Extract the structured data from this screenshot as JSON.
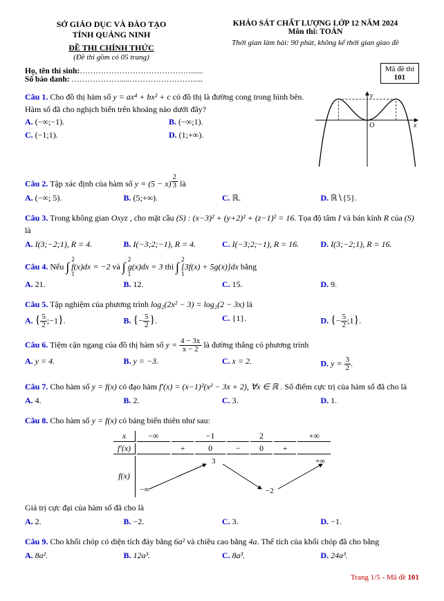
{
  "header": {
    "left_l1": "SỞ GIÁO DỤC VÀ ĐÀO TẠO",
    "left_l2": "TỈNH QUẢNG NINH",
    "left_l3": "ĐỀ THI CHÍNH THỨC",
    "left_l4": "(Đề thi gồm có 05 trang)",
    "right_r1": "KHẢO SÁT CHẤT LƯỢNG LỚP 12 NĂM 2024",
    "right_r2": "Môn thi: TOÁN",
    "right_r3": "Thời gian làm bài: 90 phút, không kể thời gian giao đề",
    "code_label": "Mã đề thi",
    "code_value": "101"
  },
  "info": {
    "name_label": "Họ, tên thí sinh:",
    "name_dots": "……………………………………......",
    "id_label": "Số báo danh:",
    "id_dots": "……………….....……………………....."
  },
  "q1": {
    "num": "Câu 1.",
    "stem_pre": " Cho đồ thị hàm số ",
    "stem_eq": "y = ax⁴ + bx² + c",
    "stem_post": " có đồ thị là đường cong trong hình bên. Hàm số đã cho nghịch biến trên khoảng nào dưới đây?",
    "A": "(−∞;−1).",
    "B": "(−∞;1).",
    "C": "(−1;1).",
    "D": "(1;+∞).",
    "graph": {
      "bg": "#ffffff",
      "axis_color": "#000000",
      "curve_color": "#000000",
      "dash_color": "#000000",
      "x_label": "x",
      "y_label": "y",
      "o_label": "O",
      "xmin": -1.8,
      "xmax": 1.8,
      "ymin": -2.2,
      "ymax": 1.4,
      "curve_a": -1,
      "curve_b": 2,
      "curve_c": 0,
      "guide_x": [
        -1,
        1
      ],
      "guide_y": 1
    }
  },
  "q2": {
    "num": "Câu 2.",
    "stem": " Tập xác định của hàm số ",
    "eq": "y = (5 − x)",
    "exp_num": "2",
    "exp_den": "3",
    "tail": " là",
    "A": "(−∞; 5).",
    "B": "(5;+∞).",
    "C": "ℝ.",
    "D": "ℝ∖{5}."
  },
  "q3": {
    "num": "Câu 3.",
    "stem": " Trong không gian ",
    "oxyz": "Oxyz",
    "mid": " , cho mặt cầu ",
    "eq": "(S) : (x−3)² + (y+2)² + (z−1)² = 16.",
    "mid2": " Tọa độ tâm ",
    "ivar": "I",
    "mid3": " và bán kính ",
    "rvar": "R",
    "mid4": " của ",
    "svar": "(S)",
    "tail": " là",
    "A": "I(3;−2;1), R = 4.",
    "B": "I(−3;2;−1), R = 4.",
    "C": "I(−3;2;−1), R = 16.",
    "D": "I(3;−2;1), R = 16."
  },
  "q4": {
    "num": "Câu 4.",
    "stem_pre": " Nếu ",
    "int1": "f(x)dx = −2",
    "mid": " và ",
    "int2": "g(x)dx = 3",
    "mid2": " thì ",
    "int3": "[3f(x) + 5g(x)]dx",
    "tail": " bằng",
    "lim_lo": "1",
    "lim_hi": "2",
    "A": "21.",
    "B": "12.",
    "C": "15.",
    "D": "9."
  },
  "q5": {
    "num": "Câu 5.",
    "stem": " Tập nghiệm của phương trình ",
    "eq": "log₂(2x² − 3) = log₂(2 − 3x)",
    "tail": " là",
    "A_open": "{",
    "A_n1": "5",
    "A_d1": "2",
    "A_mid": ";−1",
    "A_close": "}.",
    "B_open": "{−",
    "B_n": "5",
    "B_d": "2",
    "B_close": "}.",
    "C": "{1}.",
    "D_open": "{−",
    "D_n1": "5",
    "D_d1": "2",
    "D_mid": ";1",
    "D_close": "}."
  },
  "q6": {
    "num": "Câu 6.",
    "stem": " Tiệm cận ngang của đồ thị hàm số ",
    "eq_pre": "y = ",
    "eq_num": "4 − 3x",
    "eq_den": "x − 2",
    "tail": " là đường thẳng có phương trình",
    "A": "y = 4.",
    "B": "y = −3.",
    "C": "x = 2.",
    "D_pre": "y = ",
    "D_num": "3",
    "D_den": "2",
    "D_post": "."
  },
  "q7": {
    "num": "Câu 7.",
    "stem": " Cho hàm số ",
    "fx": "y = f(x)",
    "mid": " có đạo hàm ",
    "eq": "f′(x) = (x−1)²(x² − 3x + 2), ∀x ∈ ℝ",
    "tail": " . Số điểm cực trị của hàm số đã cho là",
    "A": "4.",
    "B": "2.",
    "C": "3.",
    "D": "1."
  },
  "q8": {
    "num": "Câu 8.",
    "stem": " Cho hàm số ",
    "fx": "y = f(x)",
    "tail": " có bảng biến thiên như sau:",
    "tab": {
      "x_label": "x",
      "fp_label": "f′(x)",
      "f_label": "f(x)",
      "cols": [
        "−∞",
        "−1",
        "2",
        "+∞"
      ],
      "signs": [
        "+",
        "0",
        "−",
        "0",
        "+"
      ],
      "top_vals": {
        "peak": "3",
        "right": "+∞"
      },
      "bot_vals": {
        "left": "−∞",
        "trough": "−2"
      },
      "line_color": "#000000",
      "fontsize": 12
    },
    "post": "Giá trị cực đại của hàm số đã cho là",
    "A": "2.",
    "B": "−2.",
    "C": "3.",
    "D": "−1."
  },
  "q9": {
    "num": "Câu 9.",
    "stem": " Cho khối chóp có diện tích đáy bằng ",
    "v1": "6a²",
    "mid": " và chiều cao bằng ",
    "v2": "4a",
    "tail": ". Thể tích của khối chóp đã cho bằng",
    "A": "8a².",
    "B": "12a³.",
    "C": "8a³.",
    "D": "24a³."
  },
  "footer": {
    "text_pre": "Trang 1/5 - Mã đề ",
    "code": "101"
  },
  "colors": {
    "question_num": "#0000c0",
    "footer": "#c00000"
  }
}
